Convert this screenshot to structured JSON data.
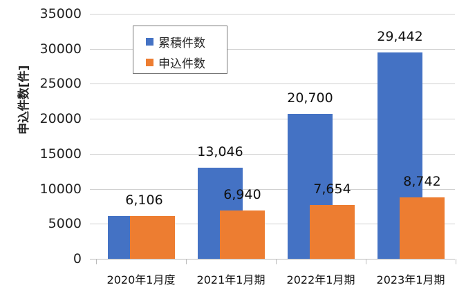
{
  "chart_data": {
    "type": "bar",
    "title": "",
    "xlabel": "",
    "ylabel": "申込件数[件]",
    "ylim": [
      0,
      35000
    ],
    "yticks": [
      0,
      5000,
      10000,
      15000,
      20000,
      25000,
      30000,
      35000
    ],
    "grid": true,
    "legend_position": "upper-left-inside",
    "categories": [
      "2020年1月度",
      "2021年1月期",
      "2022年1月期",
      "2023年1月期"
    ],
    "series": [
      {
        "name": "累積件数",
        "color": "#4472C4",
        "values": [
          6106,
          13046,
          20700,
          29442
        ],
        "labels": [
          "",
          "13,046",
          "20,700",
          "29,442"
        ]
      },
      {
        "name": "申込件数",
        "color": "#ED7D31",
        "values": [
          6106,
          6940,
          7654,
          8742
        ],
        "labels": [
          "6,106",
          "6,940",
          "7,654",
          "8,742"
        ]
      }
    ]
  }
}
